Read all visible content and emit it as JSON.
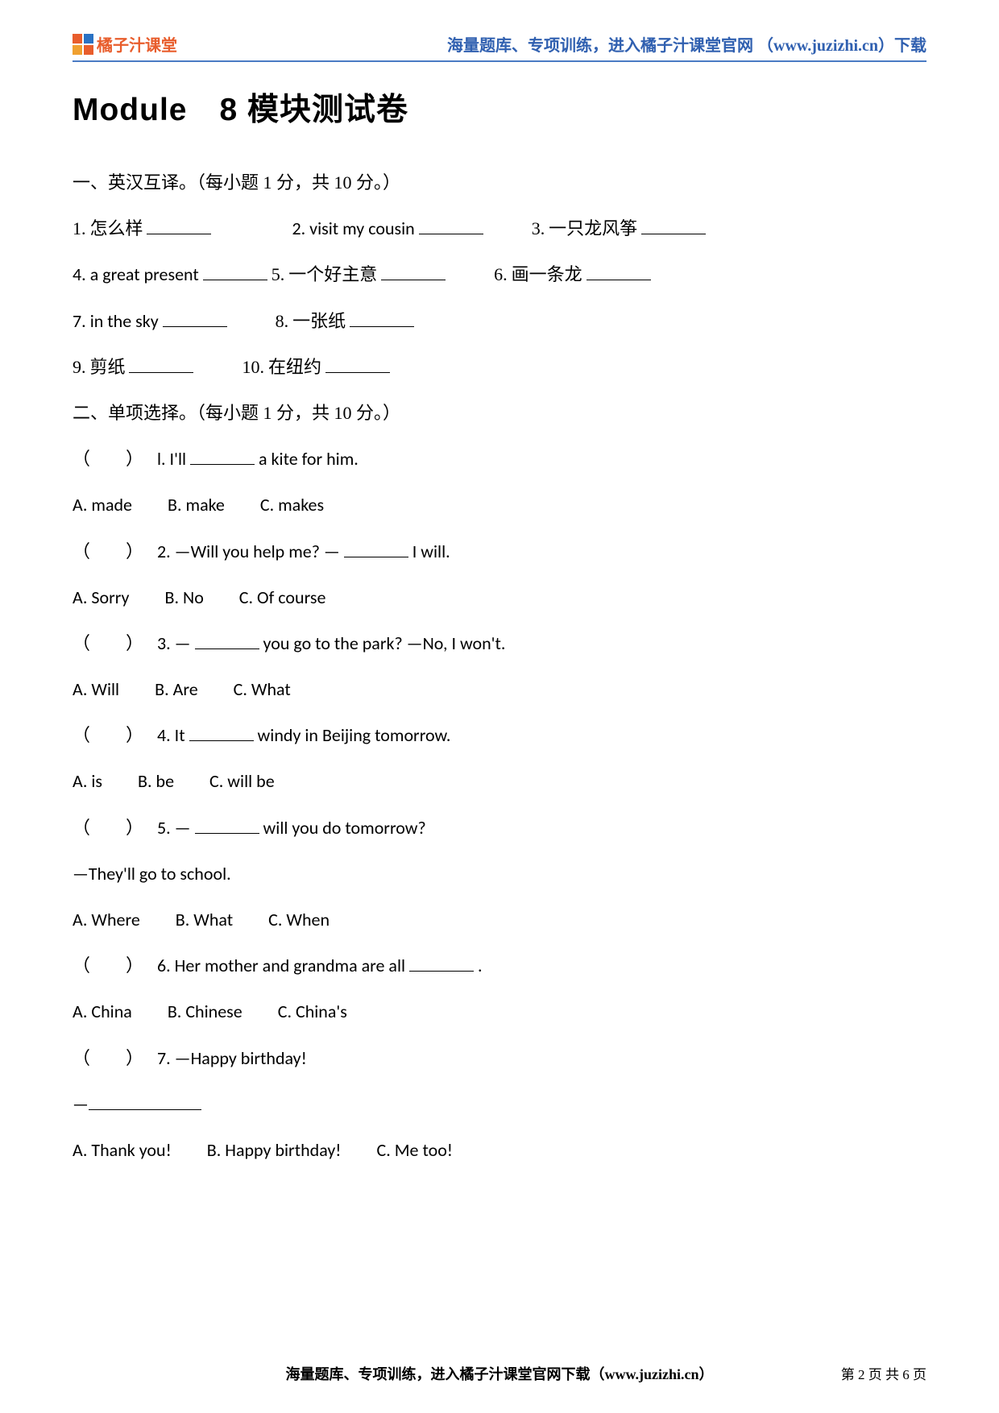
{
  "header": {
    "logo_text": "橘子汁课堂",
    "right_text": "海量题库、专项训练，进入橘子汁课堂官网 （www.juzizhi.cn）下载",
    "border_color": "#4a7bc4",
    "logo_colors": [
      "#e85d2c",
      "#2a72c4",
      "#f0a030",
      "#e85d2c"
    ]
  },
  "title": {
    "prefix": "Module　8 ",
    "cn": "模块测试卷",
    "fontsize": 39
  },
  "section1": {
    "heading": "一、英汉互译。（每小题 1 分，共 10 分。）",
    "items": [
      {
        "n": "1.",
        "label": "怎么样"
      },
      {
        "n": "2.",
        "label": "visit my cousin"
      },
      {
        "n": "3.",
        "label": "一只龙风筝"
      },
      {
        "n": "4.",
        "label": "a great present"
      },
      {
        "n": "5.",
        "label": "一个好主意"
      },
      {
        "n": "6.",
        "label": "画一条龙"
      },
      {
        "n": "7.",
        "label": "in the sky"
      },
      {
        "n": "8.",
        "label": "一张纸"
      },
      {
        "n": "9.",
        "label": "剪纸"
      },
      {
        "n": "10.",
        "label": "在纽约"
      }
    ]
  },
  "section2": {
    "heading": "二、单项选择。（每小题 1 分，共 10 分。）",
    "q1": {
      "stem_pre": "l. I'll ",
      "stem_post": " a kite for him.",
      "opts": "A. made　　B. make　　C. makes"
    },
    "q2": {
      "stem_pre": "2. —Will you help me? — ",
      "stem_post": " I will.",
      "opts": "A. Sorry　　B. No　　C. Of course"
    },
    "q3": {
      "stem_pre": "3. —",
      "stem_post": " you go to the park? —No, I won't.",
      "opts": "A. Will　　B. Are　　C. What"
    },
    "q4": {
      "stem_pre": "4. It ",
      "stem_post": "windy in Beijing tomorrow.",
      "opts": "A. is　　B. be　　C. will be"
    },
    "q5": {
      "stem_pre": "5. —",
      "stem_post": " will you do tomorrow?",
      "line2": "—They'll go to school.",
      "opts": "A. Where　　B. What　　C. When"
    },
    "q6": {
      "stem_pre": "6. Her mother and grandma are all ",
      "stem_post": ".",
      "opts": "A. China　　B. Chinese　　C. China's"
    },
    "q7": {
      "stem": "7. —Happy birthday!",
      "line2": "—",
      "opts": "A. Thank you!　　B. Happy birthday!　　C. Me too!"
    }
  },
  "footer": {
    "text": "海量题库、专项训练，进入橘子汁课堂官网下载（www.juzizhi.cn）",
    "pageno": "第 2 页 共 6 页"
  }
}
